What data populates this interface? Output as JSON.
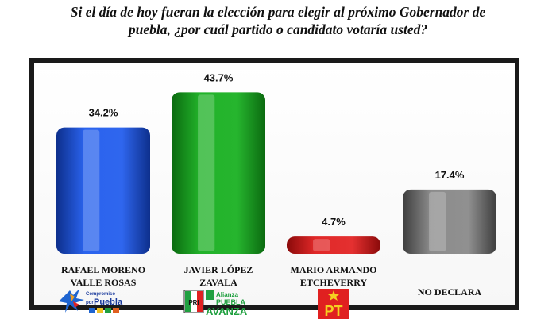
{
  "title": {
    "line1": "Si el día de hoy fueran la elección para elegir al próximo Gobernador de",
    "line2": "puebla, ¿por cuál partido o candidato  votaría usted?"
  },
  "chart_data": {
    "type": "bar",
    "categories": [
      [
        "RAFAEL MORENO",
        "VALLE ROSAS"
      ],
      [
        "JAVIER LÓPEZ",
        "ZAVALA"
      ],
      [
        "MARIO ARMANDO",
        "ETCHEVERRY"
      ],
      [
        "NO DECLARA"
      ]
    ],
    "values": [
      34.2,
      43.7,
      4.7,
      17.4
    ],
    "value_labels": [
      "34.2%",
      "43.7%",
      "4.7%",
      "17.4%"
    ],
    "bar_colors": [
      "#1f4fd8",
      "#18a020",
      "#d42020",
      "#7a7a7a"
    ],
    "ylim": [
      0,
      50
    ],
    "grid": false,
    "legend": "none"
  },
  "logos": {
    "pan_coalition": {
      "line1": "Compromiso",
      "line2": "por",
      "line3": "Puebla"
    },
    "pri_coalition": {
      "party": "PRI",
      "line1": "Alianza",
      "line2": "PUEBLA",
      "line3": "AVANZA"
    },
    "pt": {
      "text": "PT",
      "color": "#e02020"
    }
  }
}
